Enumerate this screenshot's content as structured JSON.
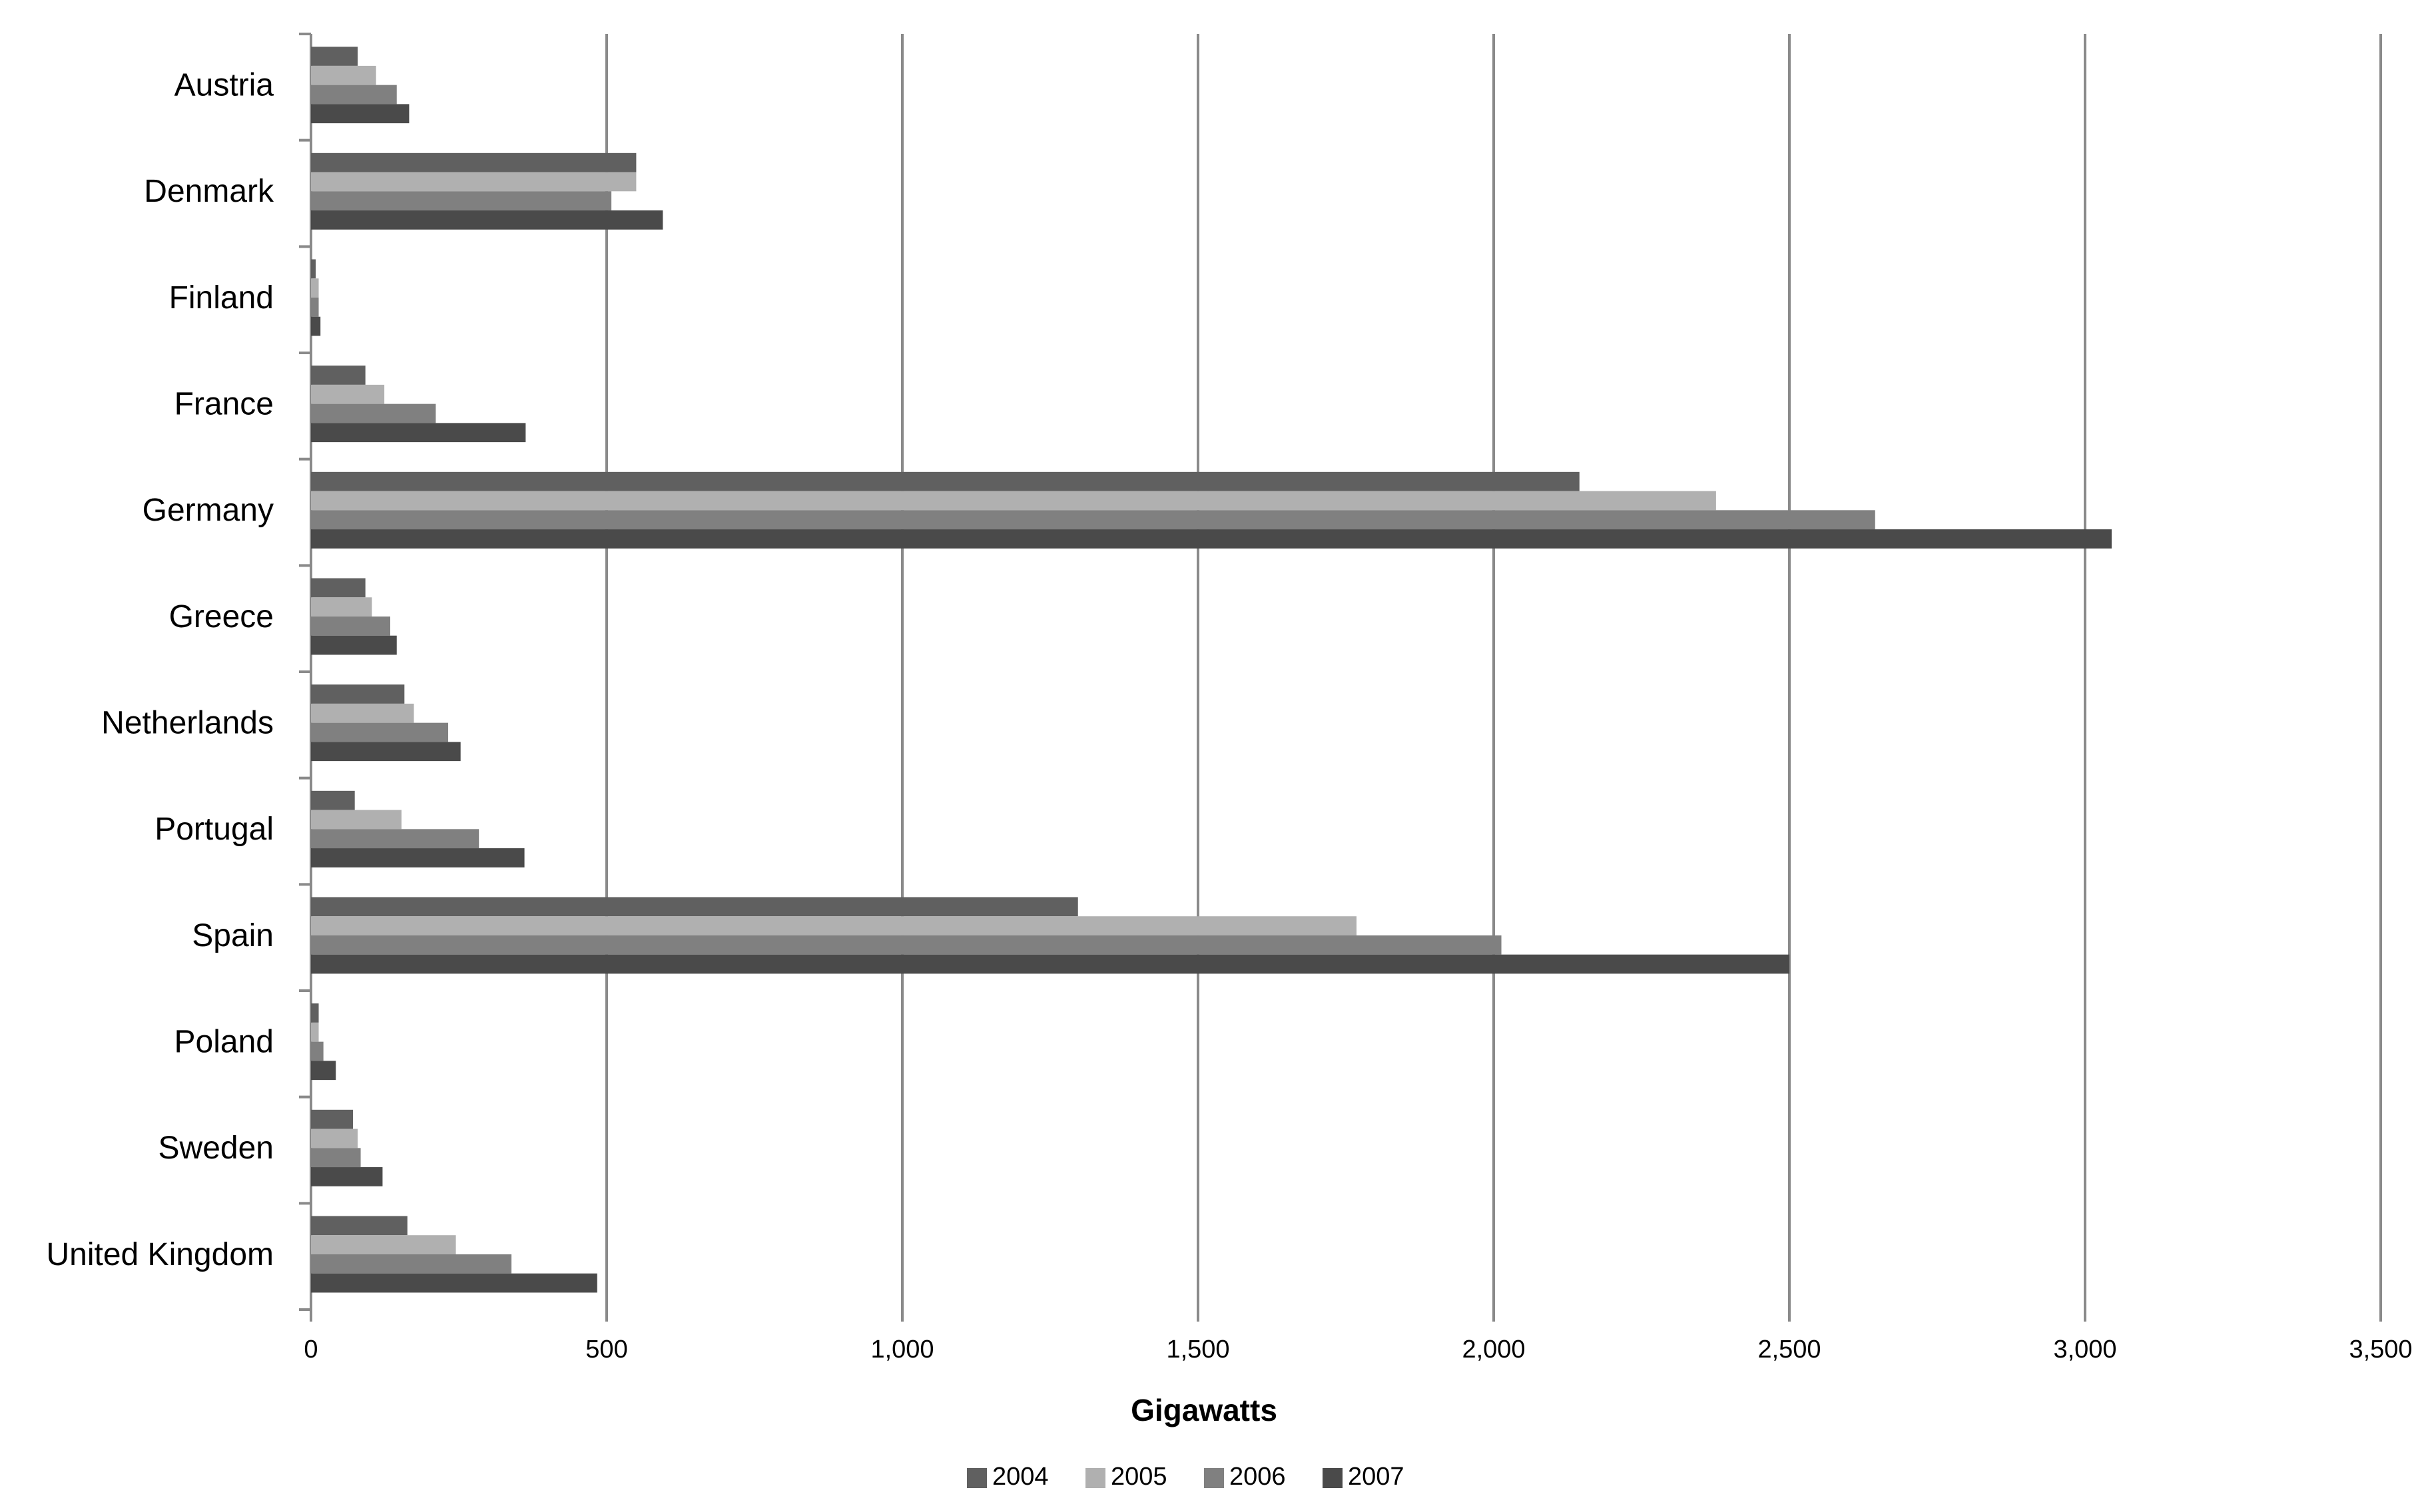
{
  "chart_data": {
    "type": "bar",
    "orientation": "horizontal",
    "x_label": "Gigawatts",
    "categories": [
      "Austria",
      "Denmark",
      "Finland",
      "France",
      "Germany",
      "Greece",
      "Netherlands",
      "Portugal",
      "Spain",
      "Poland",
      "Sweden",
      "United Kingdom"
    ],
    "series": [
      {
        "name": "2004",
        "color": "#606060",
        "values": [
          79,
          550,
          8,
          92,
          2145,
          92,
          158,
          74,
          1297,
          13,
          71,
          163
        ]
      },
      {
        "name": "2005",
        "color": "#b0b0b0",
        "values": [
          110,
          550,
          13,
          124,
          2376,
          103,
          174,
          153,
          1768,
          13,
          79,
          245
        ]
      },
      {
        "name": "2006",
        "color": "#808080",
        "values": [
          145,
          508,
          13,
          211,
          2645,
          134,
          232,
          284,
          2013,
          21,
          84,
          339
        ]
      },
      {
        "name": "2007",
        "color": "#4a4a4a",
        "values": [
          166,
          595,
          16,
          363,
          3045,
          145,
          253,
          361,
          2500,
          42,
          121,
          484
        ]
      }
    ],
    "xlim": [
      0,
      3500
    ],
    "xticks": [
      0,
      500,
      {
        "value": 1000,
        "label": "1,000"
      },
      {
        "value": 1500,
        "label": "1,500"
      },
      {
        "value": 2000,
        "label": "2,000"
      },
      {
        "value": 2500,
        "label": "2,500"
      },
      {
        "value": 3000,
        "label": "3,000"
      },
      {
        "value": 3500,
        "label": "3,500"
      }
    ],
    "grid": true,
    "legend": "bottom"
  }
}
